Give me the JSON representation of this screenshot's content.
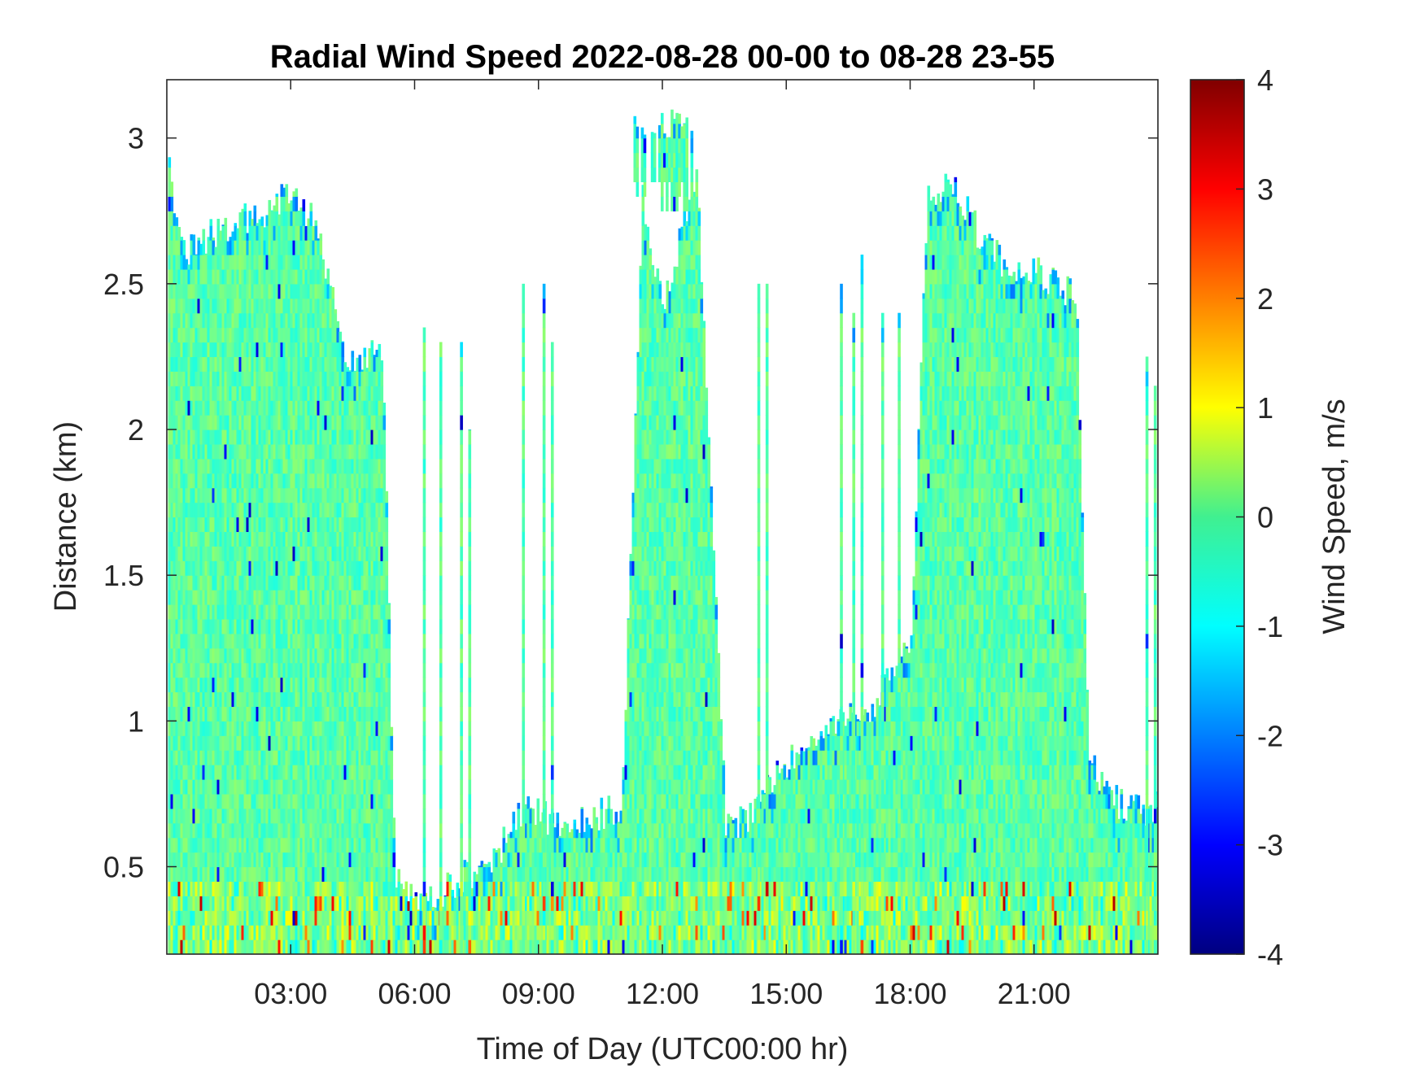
{
  "chart_data": {
    "type": "heatmap",
    "title": "Radial Wind Speed 2022-08-28 00-00 to 08-28 23-55",
    "xlabel": "Time of Day (UTC00:00 hr)",
    "ylabel": "Distance (km)",
    "colorbar_label": "Wind Speed, m/s",
    "x_range_hours": [
      0,
      24
    ],
    "ylim": [
      0.2,
      3.2
    ],
    "x_ticks": [
      {
        "hour": 3,
        "label": "03:00"
      },
      {
        "hour": 6,
        "label": "06:00"
      },
      {
        "hour": 9,
        "label": "09:00"
      },
      {
        "hour": 12,
        "label": "12:00"
      },
      {
        "hour": 15,
        "label": "15:00"
      },
      {
        "hour": 18,
        "label": "18:00"
      },
      {
        "hour": 21,
        "label": "21:00"
      }
    ],
    "y_ticks": [
      {
        "value": 0.5,
        "label": "0.5"
      },
      {
        "value": 1,
        "label": "1"
      },
      {
        "value": 1.5,
        "label": "1.5"
      },
      {
        "value": 2,
        "label": "2"
      },
      {
        "value": 2.5,
        "label": "2.5"
      },
      {
        "value": 3,
        "label": "3"
      }
    ],
    "color_scale": {
      "min": -4,
      "max": 4,
      "colormap": "jet",
      "ticks": [
        {
          "value": 4,
          "label": "4"
        },
        {
          "value": 3,
          "label": "3"
        },
        {
          "value": 2,
          "label": "2"
        },
        {
          "value": 1,
          "label": "1"
        },
        {
          "value": 0,
          "label": "0"
        },
        {
          "value": -1,
          "label": "-1"
        },
        {
          "value": -2,
          "label": "-2"
        },
        {
          "value": -3,
          "label": "-3"
        },
        {
          "value": -4,
          "label": "-4"
        }
      ]
    },
    "background_color": "#ffffff",
    "data_top_profile_km": {
      "hours": [
        0.0,
        0.3,
        0.8,
        1.5,
        2.3,
        3.0,
        3.6,
        4.2,
        4.5,
        5.2,
        5.5,
        6.0,
        6.5,
        7.0,
        8.0,
        8.5,
        9.5,
        11.0,
        11.5,
        12.0,
        12.8,
        13.5,
        14.0,
        14.5,
        15.0,
        15.5,
        16.3,
        17.0,
        17.5,
        18.0,
        18.4,
        19.0,
        19.5,
        20.0,
        20.5,
        21.0,
        21.5,
        22.0,
        22.3,
        22.8,
        23.2,
        23.6,
        24.0
      ],
      "top_km": [
        2.95,
        2.6,
        2.65,
        2.7,
        2.75,
        2.8,
        2.7,
        2.3,
        2.2,
        2.3,
        0.45,
        0.4,
        0.4,
        0.45,
        0.55,
        0.7,
        0.65,
        0.7,
        2.8,
        2.4,
        2.9,
        0.65,
        0.65,
        0.8,
        0.85,
        0.9,
        1.0,
        1.05,
        1.15,
        1.3,
        2.8,
        2.85,
        2.7,
        2.6,
        2.55,
        2.55,
        2.5,
        2.45,
        0.85,
        0.75,
        0.7,
        0.7,
        0.7
      ]
    },
    "isolated_columns": [
      {
        "hour": 6.2,
        "top_km": 2.35
      },
      {
        "hour": 6.6,
        "top_km": 2.3
      },
      {
        "hour": 7.1,
        "top_km": 2.3
      },
      {
        "hour": 7.3,
        "top_km": 2.0
      },
      {
        "hour": 8.6,
        "top_km": 2.5
      },
      {
        "hour": 9.1,
        "top_km": 2.5
      },
      {
        "hour": 9.3,
        "top_km": 2.3
      },
      {
        "hour": 14.3,
        "top_km": 2.5
      },
      {
        "hour": 14.5,
        "top_km": 2.5
      },
      {
        "hour": 16.3,
        "top_km": 2.5
      },
      {
        "hour": 16.6,
        "top_km": 2.4
      },
      {
        "hour": 16.8,
        "top_km": 2.6
      },
      {
        "hour": 17.3,
        "top_km": 2.4
      },
      {
        "hour": 17.7,
        "top_km": 2.4
      },
      {
        "hour": 23.7,
        "top_km": 2.25
      },
      {
        "hour": 23.9,
        "top_km": 2.15
      }
    ],
    "upper_patches": [
      {
        "hour_start": 11.3,
        "hour_end": 12.7,
        "bottom_km": 2.7,
        "top_km": 3.1
      }
    ]
  }
}
